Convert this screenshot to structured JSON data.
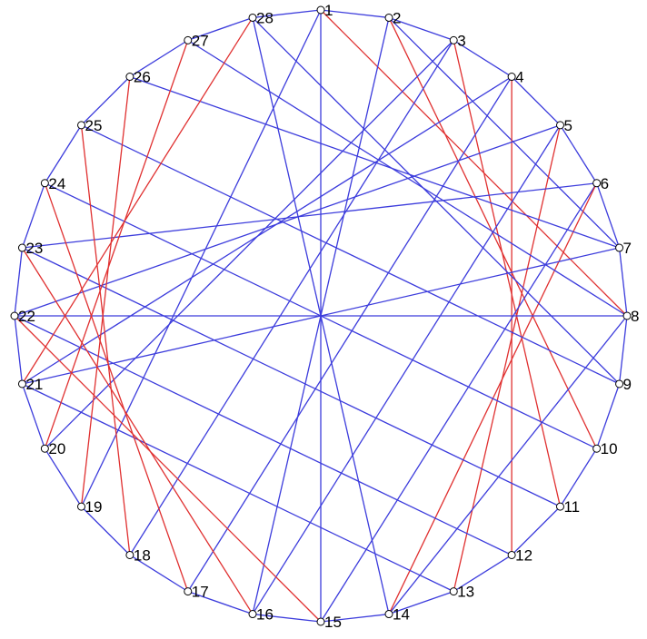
{
  "graph": {
    "colors": {
      "blue": "#3c3cdc",
      "red": "#e03030",
      "node_fill": "#ffffff",
      "node_stroke": "#000000"
    },
    "nodes": [
      "1",
      "2",
      "3",
      "4",
      "5",
      "6",
      "7",
      "8",
      "9",
      "10",
      "11",
      "12",
      "13",
      "14",
      "15",
      "16",
      "17",
      "18",
      "19",
      "20",
      "21",
      "22",
      "23",
      "24",
      "25",
      "26",
      "27",
      "28"
    ],
    "edges": [
      {
        "a": 1,
        "b": 2,
        "color": "blue"
      },
      {
        "a": 2,
        "b": 3,
        "color": "blue"
      },
      {
        "a": 3,
        "b": 4,
        "color": "blue"
      },
      {
        "a": 4,
        "b": 5,
        "color": "blue"
      },
      {
        "a": 5,
        "b": 6,
        "color": "blue"
      },
      {
        "a": 6,
        "b": 7,
        "color": "blue"
      },
      {
        "a": 7,
        "b": 8,
        "color": "blue"
      },
      {
        "a": 8,
        "b": 9,
        "color": "blue"
      },
      {
        "a": 9,
        "b": 10,
        "color": "blue"
      },
      {
        "a": 10,
        "b": 11,
        "color": "blue"
      },
      {
        "a": 11,
        "b": 12,
        "color": "blue"
      },
      {
        "a": 12,
        "b": 13,
        "color": "blue"
      },
      {
        "a": 13,
        "b": 14,
        "color": "blue"
      },
      {
        "a": 14,
        "b": 15,
        "color": "blue"
      },
      {
        "a": 15,
        "b": 16,
        "color": "blue"
      },
      {
        "a": 16,
        "b": 17,
        "color": "blue"
      },
      {
        "a": 17,
        "b": 18,
        "color": "blue"
      },
      {
        "a": 18,
        "b": 19,
        "color": "blue"
      },
      {
        "a": 19,
        "b": 20,
        "color": "blue"
      },
      {
        "a": 20,
        "b": 21,
        "color": "blue"
      },
      {
        "a": 21,
        "b": 22,
        "color": "blue"
      },
      {
        "a": 22,
        "b": 23,
        "color": "blue"
      },
      {
        "a": 23,
        "b": 24,
        "color": "blue"
      },
      {
        "a": 24,
        "b": 25,
        "color": "blue"
      },
      {
        "a": 25,
        "b": 26,
        "color": "blue"
      },
      {
        "a": 26,
        "b": 27,
        "color": "blue"
      },
      {
        "a": 27,
        "b": 28,
        "color": "blue"
      },
      {
        "a": 28,
        "b": 1,
        "color": "blue"
      },
      {
        "a": 1,
        "b": 15,
        "color": "blue"
      },
      {
        "a": 1,
        "b": 19,
        "color": "blue"
      },
      {
        "a": 1,
        "b": 8,
        "color": "red"
      },
      {
        "a": 2,
        "b": 16,
        "color": "blue"
      },
      {
        "a": 2,
        "b": 7,
        "color": "blue"
      },
      {
        "a": 2,
        "b": 10,
        "color": "red"
      },
      {
        "a": 3,
        "b": 20,
        "color": "blue"
      },
      {
        "a": 3,
        "b": 18,
        "color": "blue"
      },
      {
        "a": 3,
        "b": 11,
        "color": "red"
      },
      {
        "a": 4,
        "b": 21,
        "color": "blue"
      },
      {
        "a": 4,
        "b": 17,
        "color": "blue"
      },
      {
        "a": 4,
        "b": 12,
        "color": "red"
      },
      {
        "a": 5,
        "b": 22,
        "color": "blue"
      },
      {
        "a": 5,
        "b": 16,
        "color": "blue"
      },
      {
        "a": 5,
        "b": 13,
        "color": "red"
      },
      {
        "a": 6,
        "b": 15,
        "color": "blue"
      },
      {
        "a": 6,
        "b": 23,
        "color": "blue"
      },
      {
        "a": 6,
        "b": 14,
        "color": "red"
      },
      {
        "a": 7,
        "b": 21,
        "color": "blue"
      },
      {
        "a": 7,
        "b": 26,
        "color": "blue"
      },
      {
        "a": 8,
        "b": 22,
        "color": "blue"
      },
      {
        "a": 8,
        "b": 14,
        "color": "blue"
      },
      {
        "a": 8,
        "b": 27,
        "color": "blue"
      },
      {
        "a": 9,
        "b": 25,
        "color": "blue"
      },
      {
        "a": 9,
        "b": 28,
        "color": "blue"
      },
      {
        "a": 10,
        "b": 24,
        "color": "blue"
      },
      {
        "a": 11,
        "b": 23,
        "color": "blue"
      },
      {
        "a": 12,
        "b": 22,
        "color": "blue"
      },
      {
        "a": 13,
        "b": 21,
        "color": "blue"
      },
      {
        "a": 14,
        "b": 28,
        "color": "blue"
      },
      {
        "a": 15,
        "b": 22,
        "color": "red"
      },
      {
        "a": 16,
        "b": 23,
        "color": "red"
      },
      {
        "a": 17,
        "b": 24,
        "color": "red"
      },
      {
        "a": 18,
        "b": 25,
        "color": "red"
      },
      {
        "a": 19,
        "b": 26,
        "color": "red"
      },
      {
        "a": 20,
        "b": 27,
        "color": "red"
      },
      {
        "a": 21,
        "b": 28,
        "color": "red"
      }
    ]
  }
}
